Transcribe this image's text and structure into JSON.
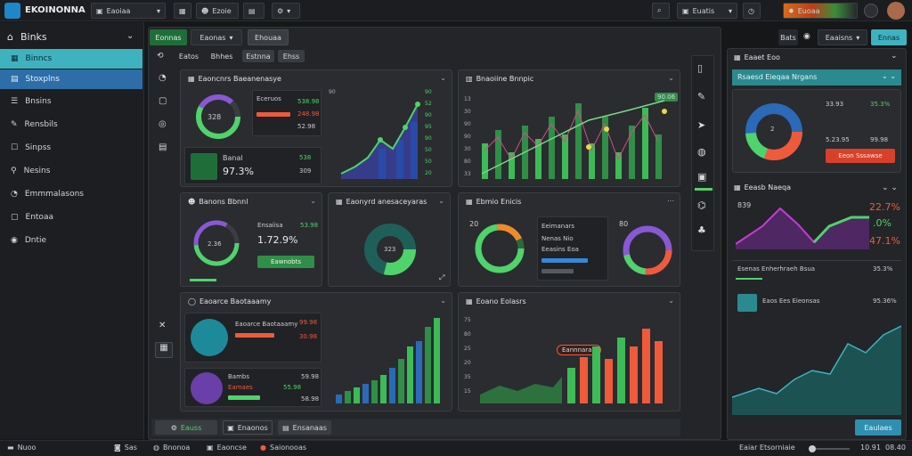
{
  "app": {
    "title": "EKOINONNA",
    "logo_icon": "atom-logo-icon"
  },
  "toolbar": {
    "menu1": "Eaoiaa",
    "user_name": "Ezoie",
    "cart_label": "Euatis",
    "total_label": "Euoaa"
  },
  "sidebar": {
    "header": "Binks",
    "items": [
      {
        "label": "Binncs",
        "icon": "grid-icon",
        "active": "teal"
      },
      {
        "label": "Stoxplns",
        "icon": "layout-icon",
        "active": "blue"
      },
      {
        "label": "Bnsins",
        "icon": "list-icon"
      },
      {
        "label": "Rensbils",
        "icon": "wrench-icon"
      },
      {
        "label": "Sinpss",
        "icon": "chat-icon"
      },
      {
        "label": "Nesins",
        "icon": "link-icon"
      },
      {
        "label": "Emmmalasons",
        "icon": "clock-icon"
      },
      {
        "label": "Entoaa",
        "icon": "doc-icon"
      },
      {
        "label": "Dntie",
        "icon": "eye-icon"
      }
    ]
  },
  "main": {
    "tabs": [
      "Eonnas",
      "Eaonas",
      "Ehouaa"
    ],
    "subtabs": [
      "Eatos",
      "Bhhes",
      "Estnna",
      "Ehss"
    ],
    "c1": {
      "title": "Eaoncnrs Baeanenasye",
      "sub_title": "Eceruos",
      "v1": "538.98",
      "v2": "248.98",
      "v3": "52.98",
      "ring": "328",
      "a_label": "Banal",
      "a_pct": "97.3%",
      "a_v1": "538",
      "a_v2": "309"
    },
    "c2": {
      "ticks": [
        "90",
        "52",
        "90",
        "95",
        "90",
        "50",
        "50",
        "20"
      ]
    },
    "c3": {
      "title": "Bnaoiine Bnnpic",
      "ticks": [
        "13",
        "30",
        "90",
        "90",
        "30",
        "80",
        "33"
      ],
      "badge": "90.06"
    },
    "c4": {
      "title": "Banons Bbnnl",
      "sub": "Ensaiisa",
      "pct": "1.72.9%",
      "v": "53.98",
      "ring": "2.36",
      "btn": "Eawnobts"
    },
    "c5": {
      "title": "Eaonyrd anesaceyaras",
      "ring": "323"
    },
    "c6": {
      "title": "Ebmio Enicis",
      "l1": "20",
      "l2": "80",
      "r1": "Eeimanars",
      "r2": "Nenas Nio",
      "r3": "Eeasins Eoa"
    },
    "c7": {
      "title": "Eaoarce Baotaaamy",
      "v1": "99.98",
      "v2": "30.98",
      "b": "Bambs",
      "b1": "59.98",
      "b2": "55.98",
      "b3": "58.98",
      "b_sub": "Eamaes"
    },
    "c8": {
      "title": "Eoano Eolasrs",
      "badge": "Eannnaraa",
      "ticks": [
        "75",
        "80",
        "25",
        "20",
        "35",
        "15"
      ]
    },
    "bottom_tabs": [
      "Eauss",
      "Enaonos",
      "Ensanaas"
    ]
  },
  "right": {
    "top_btn": "Bats",
    "dd": "Eaaisns",
    "cta": "Ennas",
    "p1": {
      "title": "Eaaet Eoo",
      "sub": "Rsaesd Eieqaa Nrgans",
      "v1": "35.3%",
      "v2": "33.93",
      "v3": "5.23.95",
      "v4": "99.98",
      "btn": "Eeon Sssawse",
      "ring": "2"
    },
    "p2": {
      "title": "Eeasb Naeqa",
      "l": "839",
      "v1": "22.7%",
      "v2": ".0%",
      "v3": "47.1%"
    },
    "p3": {
      "title": "Esenas Enherhraeh Bsua",
      "v": "35.3%",
      "sub": "Eaos Ees Eieonsas",
      "sv": "95.36%"
    },
    "btn": "Eaulaes"
  },
  "statusbar": {
    "left": "Nuoo",
    "b1": "Sas",
    "b2": "Bnonoa",
    "b3": "Eaoncse",
    "b4": "Saionooas",
    "right_text": "Eaiar Etsorniaie",
    "time1": "10.91",
    "time2": "08.40"
  }
}
